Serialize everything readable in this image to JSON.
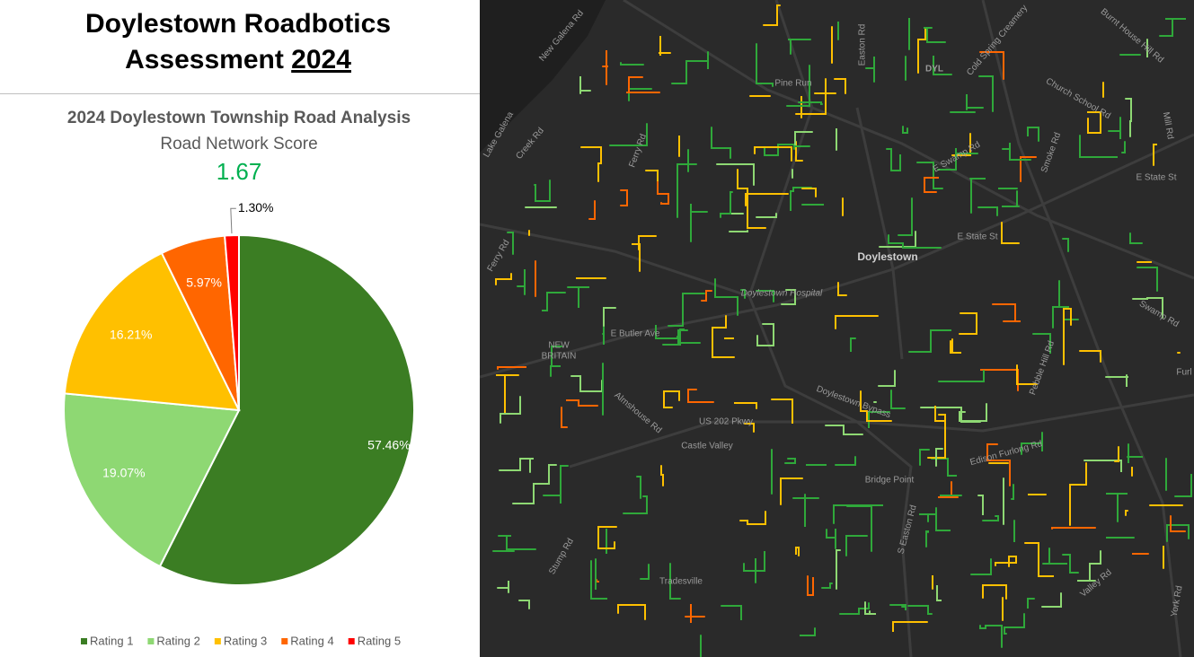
{
  "header": {
    "title_line1": "Doylestown Roadbotics",
    "title_line2": "Assessment",
    "title_year": "2024"
  },
  "chart_data": {
    "type": "pie",
    "title": "2024 Doylestown Township Road Analysis",
    "subtitle": "Road Network Score",
    "score": 1.67,
    "categories": [
      "Rating 1",
      "Rating 2",
      "Rating 3",
      "Rating 4",
      "Rating 5"
    ],
    "values": [
      57.46,
      19.07,
      16.21,
      5.97,
      1.3
    ],
    "value_labels": [
      "57.46%",
      "19.07%",
      "16.21%",
      "5.97%",
      "1.30%"
    ],
    "colors": [
      "#3b7d23",
      "#8ed873",
      "#ffc000",
      "#ff6600",
      "#ff0000"
    ],
    "legend": "bottom"
  },
  "map": {
    "labels": [
      "Pine Run",
      "DYL",
      "Doylestown",
      "Doylestown Hospital",
      "E Butler Ave",
      "NEW",
      "BRITAIN",
      "Almshouse Rd",
      "US 202 Pkwy",
      "Castle Valley",
      "Doylestown Bypass",
      "Bridge Point",
      "Tradesville",
      "Edison Furlong Rd",
      "E State St",
      "E State St",
      "E Swamp Rd",
      "Swamp Rd",
      "Church School Rd",
      "Burnt House Hill Rd",
      "Cold Spring Creamery",
      "Easton Rd",
      "Ferry Rd",
      "Ferry Rd",
      "Creek Rd",
      "Lake Galena",
      "New Galena Rd",
      "Stump Rd",
      "Valley Rd",
      "York Rd",
      "S Easton Rd",
      "Pebble Hill Rd",
      "Smoke Rd",
      "Mill Rd",
      "Furl"
    ]
  }
}
